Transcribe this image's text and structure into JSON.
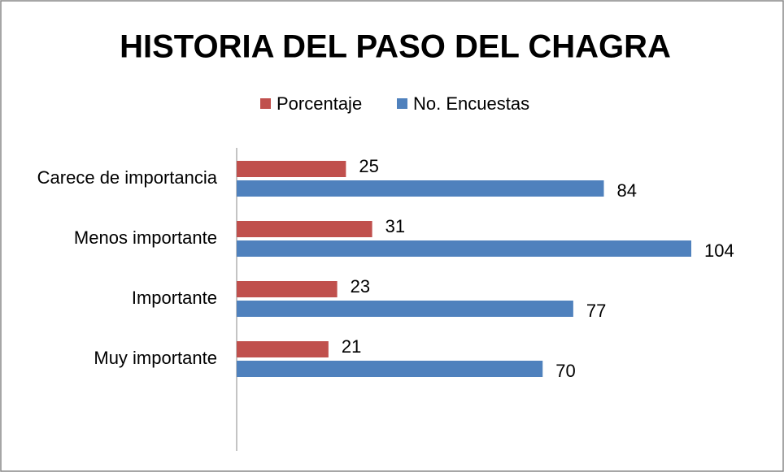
{
  "chart_data": {
    "type": "hbar",
    "title": "HISTORIA DEL PASO DEL CHAGRA",
    "categories": [
      "Carece de importancia",
      "Menos importante",
      "Importante",
      "Muy importante"
    ],
    "series": [
      {
        "name": "Porcentaje",
        "color": "#c0504d",
        "values": [
          25,
          31,
          23,
          21
        ]
      },
      {
        "name": "No. Encuestas",
        "color": "#4f81bd",
        "values": [
          84,
          104,
          77,
          70
        ]
      }
    ],
    "xlim": [
      0,
      120
    ],
    "legend": "top"
  }
}
